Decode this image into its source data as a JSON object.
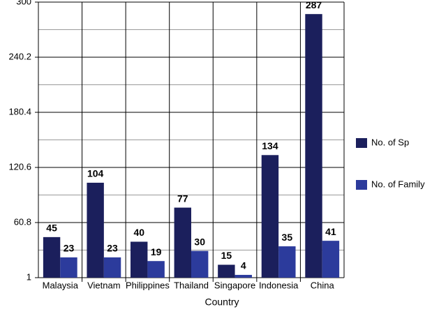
{
  "chart_data": {
    "type": "bar",
    "x_label": "Country",
    "categories": [
      "Malaysia",
      "Vietnam",
      "Philippines",
      "Thailand",
      "Singapore",
      "Indonesia",
      "China"
    ],
    "series": [
      {
        "name": "No. of Sp",
        "color": "#1b1f5c",
        "values": [
          45,
          104,
          40,
          77,
          15,
          134,
          287
        ]
      },
      {
        "name": "No. of Family",
        "color": "#2c3b9c",
        "values": [
          23,
          23,
          19,
          30,
          4,
          35,
          41
        ]
      }
    ],
    "ylim": [
      1,
      300
    ],
    "yticks": [
      1,
      60.8,
      120.6,
      180.4,
      240.2,
      300
    ],
    "grid": true
  }
}
